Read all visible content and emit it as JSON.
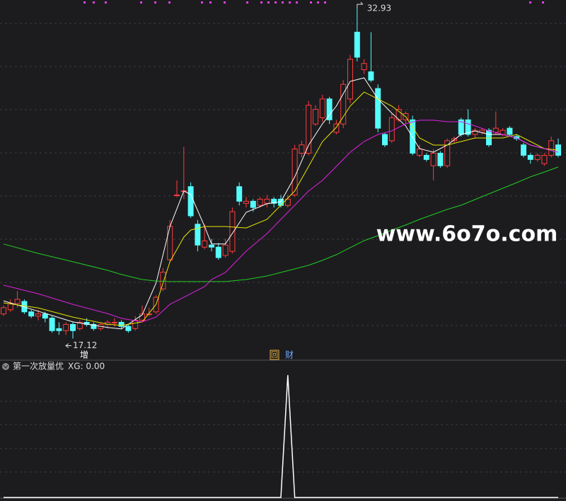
{
  "chart_data": {
    "type": "candlestick",
    "candles": [
      [
        18.3,
        18.6,
        18.7,
        18.2
      ],
      [
        18.5,
        18.8,
        19.0,
        18.4
      ],
      [
        18.8,
        19.0,
        19.4,
        18.6
      ],
      [
        18.9,
        18.4,
        19.0,
        18.3
      ],
      [
        18.4,
        18.2,
        18.5,
        18.1
      ],
      [
        18.2,
        18.3,
        18.5,
        18.0
      ],
      [
        18.3,
        18.1,
        18.4,
        17.9
      ],
      [
        18.1,
        17.5,
        18.2,
        17.4
      ],
      [
        17.6,
        17.5,
        17.9,
        17.3
      ],
      [
        17.5,
        17.8,
        17.9,
        17.3
      ],
      [
        17.8,
        17.5,
        17.9,
        17.12
      ],
      [
        17.6,
        17.9,
        18.0,
        17.5
      ],
      [
        17.9,
        17.8,
        18.1,
        17.7
      ],
      [
        17.8,
        17.6,
        17.9,
        17.5
      ],
      [
        17.6,
        17.8,
        17.9,
        17.5
      ],
      [
        17.8,
        17.9,
        18.0,
        17.6
      ],
      [
        17.9,
        17.9,
        18.1,
        17.7
      ],
      [
        17.9,
        17.7,
        18.0,
        17.6
      ],
      [
        17.7,
        17.5,
        17.8,
        17.4
      ],
      [
        17.6,
        18.0,
        18.2,
        17.5
      ],
      [
        18.0,
        18.3,
        18.7,
        17.9
      ],
      [
        18.3,
        18.3,
        18.6,
        18.2
      ],
      [
        18.4,
        19.1,
        19.2,
        18.3
      ],
      [
        19.5,
        20.3,
        20.5,
        19.4
      ],
      [
        20.9,
        22.5,
        22.8,
        20.8
      ],
      [
        24.0,
        24.0,
        24.7,
        23.9
      ],
      [
        24.2,
        24.2,
        26.3,
        23.8
      ],
      [
        24.4,
        23.0,
        24.6,
        22.9
      ],
      [
        22.6,
        21.6,
        22.8,
        21.3
      ],
      [
        21.5,
        21.8,
        22.6,
        21.4
      ],
      [
        21.6,
        21.5,
        21.9,
        21.3
      ],
      [
        21.5,
        21.0,
        21.7,
        20.9
      ],
      [
        21.1,
        21.6,
        21.9,
        21.0
      ],
      [
        21.3,
        23.2,
        23.4,
        21.2
      ],
      [
        24.4,
        23.7,
        24.6,
        23.5
      ],
      [
        23.6,
        23.7,
        23.9,
        23.4
      ],
      [
        23.7,
        23.4,
        23.8,
        23.2
      ],
      [
        23.5,
        23.8,
        23.9,
        23.4
      ],
      [
        23.6,
        23.8,
        24.0,
        23.4
      ],
      [
        23.8,
        23.6,
        23.9,
        23.4
      ],
      [
        23.8,
        23.5,
        24.0,
        23.4
      ],
      [
        23.5,
        23.8,
        24.0,
        23.4
      ],
      [
        24.0,
        26.2,
        26.4,
        23.9
      ],
      [
        26.0,
        26.4,
        26.6,
        25.8
      ],
      [
        26.0,
        28.3,
        28.5,
        25.9
      ],
      [
        27.4,
        28.1,
        28.3,
        27.3
      ],
      [
        27.7,
        28.6,
        28.8,
        27.5
      ],
      [
        28.6,
        27.6,
        28.7,
        27.4
      ],
      [
        27.0,
        27.4,
        27.6,
        26.9
      ],
      [
        27.4,
        29.3,
        29.5,
        27.2
      ],
      [
        28.6,
        30.5,
        30.7,
        28.4
      ],
      [
        31.8,
        30.6,
        32.93,
        30.4
      ],
      [
        30.0,
        30.3,
        30.5,
        29.8
      ],
      [
        29.9,
        29.5,
        31.8,
        29.4
      ],
      [
        29.1,
        27.2,
        29.3,
        27.0
      ],
      [
        26.9,
        26.4,
        27.0,
        26.3
      ],
      [
        26.6,
        27.7,
        27.9,
        26.5
      ],
      [
        27.6,
        28.1,
        28.3,
        27.5
      ],
      [
        27.6,
        27.9,
        28.0,
        27.4
      ],
      [
        27.6,
        26.0,
        27.8,
        25.9
      ],
      [
        25.9,
        26.2,
        26.4,
        25.8
      ],
      [
        25.9,
        25.7,
        26.0,
        25.6
      ],
      [
        25.4,
        26.0,
        26.2,
        24.7
      ],
      [
        26.0,
        25.4,
        26.1,
        25.3
      ],
      [
        25.4,
        26.6,
        26.7,
        25.3
      ],
      [
        26.6,
        26.7,
        26.8,
        26.5
      ],
      [
        27.6,
        26.9,
        27.7,
        26.8
      ],
      [
        27.6,
        26.9,
        28.1,
        26.8
      ],
      [
        26.9,
        27.1,
        27.2,
        26.7
      ],
      [
        27.0,
        27.1,
        27.2,
        26.9
      ],
      [
        27.1,
        26.4,
        27.2,
        26.3
      ],
      [
        27.0,
        27.2,
        28.0,
        26.9
      ],
      [
        26.9,
        27.1,
        27.2,
        26.8
      ],
      [
        27.2,
        26.9,
        27.3,
        26.8
      ],
      [
        26.8,
        26.7,
        26.9,
        26.6
      ],
      [
        26.4,
        25.9,
        26.5,
        25.8
      ],
      [
        25.9,
        25.7,
        26.0,
        25.5
      ],
      [
        25.7,
        25.9,
        26.0,
        25.6
      ],
      [
        25.5,
        25.9,
        26.0,
        25.4
      ],
      [
        25.9,
        26.6,
        26.8,
        25.8
      ],
      [
        26.4,
        25.9,
        26.7,
        25.8
      ]
    ],
    "up_color": "#ff3b3b",
    "down_color": "#54fcfc",
    "ylim": [
      16.56,
      33.34
    ],
    "ma_x": [
      0,
      5,
      10,
      15,
      17,
      20,
      22,
      24,
      26,
      27,
      29,
      30,
      32,
      35,
      38,
      40,
      42,
      44,
      46,
      48,
      50,
      52,
      54,
      56,
      58,
      60,
      62,
      64,
      66,
      68,
      70,
      72,
      74,
      76,
      78,
      80
    ],
    "moving_averages": [
      {
        "color": "#ffffff",
        "values": [
          18.93,
          18.43,
          17.92,
          17.65,
          17.58,
          18.26,
          19.78,
          22.49,
          24.19,
          24.02,
          22.49,
          21.65,
          21.65,
          23.17,
          23.58,
          23.68,
          24.87,
          26.39,
          27.41,
          28.26,
          29.44,
          29.61,
          28.6,
          27.92,
          27.31,
          26.22,
          26.05,
          26.39,
          26.9,
          27.07,
          26.9,
          26.9,
          26.73,
          26.39,
          26.22,
          26.05
        ]
      },
      {
        "color": "#e6e600",
        "values": [
          18.83,
          18.59,
          18.15,
          17.81,
          17.75,
          17.92,
          18.76,
          20.8,
          21.98,
          22.32,
          22.49,
          22.49,
          22.49,
          22.42,
          22.83,
          23.51,
          24.19,
          25.37,
          26.56,
          27.24,
          28.26,
          28.93,
          28.6,
          28.26,
          27.75,
          26.73,
          26.39,
          26.39,
          26.56,
          26.73,
          26.73,
          26.73,
          26.9,
          26.56,
          26.22,
          26.15
        ]
      },
      {
        "color": "#e020e0",
        "values": [
          19.68,
          19.27,
          18.76,
          18.32,
          18.09,
          17.92,
          18.15,
          18.76,
          19.1,
          19.27,
          19.61,
          19.95,
          20.29,
          21.31,
          22.15,
          22.83,
          23.51,
          24.19,
          24.7,
          25.37,
          26.05,
          26.56,
          26.9,
          27.07,
          27.41,
          27.58,
          27.58,
          27.51,
          27.51,
          27.31,
          27.07,
          26.9,
          26.73,
          26.39,
          26.22,
          26.05
        ]
      },
      {
        "color": "#22cc22",
        "values": [
          21.65,
          21.2,
          20.8,
          20.39,
          20.19,
          19.95,
          19.88,
          19.85,
          19.85,
          19.85,
          19.85,
          19.85,
          19.85,
          19.95,
          20.12,
          20.29,
          20.46,
          20.63,
          20.87,
          21.14,
          21.48,
          21.81,
          22.05,
          22.32,
          22.56,
          22.83,
          23.07,
          23.31,
          23.51,
          23.78,
          24.05,
          24.32,
          24.59,
          24.87,
          25.1,
          25.34
        ]
      }
    ],
    "markers": [
      "增",
      "回",
      "财"
    ],
    "watermark": "www.6o7o.com",
    "indicator": {
      "name": "第一次放量优",
      "readout": "XG: 0.00",
      "color": "#ffffff",
      "ylim": [
        0,
        1.03
      ],
      "values": [
        0,
        0,
        0,
        0,
        0,
        0,
        0,
        0,
        0,
        0,
        0,
        0,
        0,
        0,
        0,
        0,
        0,
        0,
        0,
        0,
        0,
        0,
        0,
        0,
        0,
        0,
        0,
        0,
        0,
        0,
        0,
        0,
        0,
        0,
        0,
        0,
        0,
        0,
        0,
        0,
        0,
        1,
        0,
        0,
        0,
        0,
        0,
        0,
        0,
        0,
        0,
        0,
        0,
        0,
        0,
        0,
        0,
        0,
        0,
        0,
        0,
        0,
        0,
        0,
        0,
        0,
        0,
        0,
        0,
        0,
        0,
        0,
        0,
        0,
        0,
        0,
        0,
        0,
        0,
        0,
        0
      ]
    }
  }
}
